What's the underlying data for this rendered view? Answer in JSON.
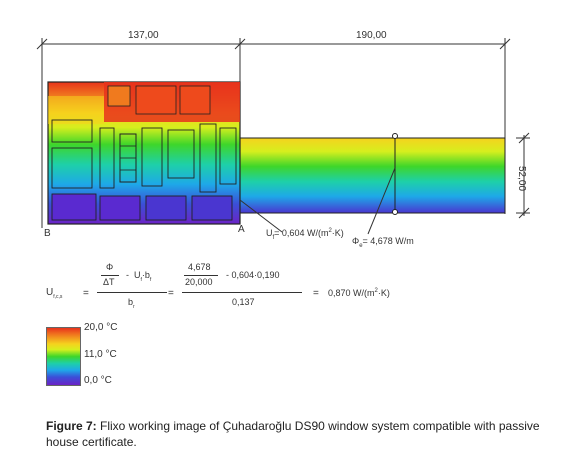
{
  "dimensions": {
    "width_left": "137,00",
    "width_right": "190,00",
    "height_right": "52,00"
  },
  "point_labels": {
    "b": "B",
    "a": "A"
  },
  "annotations": {
    "u_value": "U",
    "u_value_sub": "f",
    "u_value_text": "= 0,604 W/(m",
    "u_value_sup": "2",
    "u_value_end": "·K)",
    "phi_value": "Φ",
    "phi_value_sub": "e",
    "phi_value_text": "= 4,678 W/m"
  },
  "equation": {
    "lhs": "U",
    "lhs_sub": "f,c,s",
    "eq1": "=",
    "frac1_num": "Φ",
    "frac1_num2_a": "U",
    "frac1_num2_sub": "f",
    "frac1_num2_b": "·b",
    "frac1_num2_sub2": "f",
    "frac1_den": "ΔT",
    "frac1_minus": "-",
    "frac1_bottom": "b",
    "frac1_bottom_sub": "r",
    "eq2": "=",
    "frac2_num_a": "4,678",
    "frac2_num_den": "20,000",
    "frac2_num_b": "- 0,604·0,190",
    "frac2_den": "0,137",
    "eq3": "=",
    "result": "0,870 W/(m",
    "result_sup": "2",
    "result_end": "·K)"
  },
  "legend": {
    "max": "20,0 °C",
    "mid": "11,0 °C",
    "min": "0,0 °C"
  },
  "caption": {
    "label": "Figure 7:",
    "text": " Flixo working image of Çuhadaroğlu DS90 window system compatible with passive house certificate."
  }
}
